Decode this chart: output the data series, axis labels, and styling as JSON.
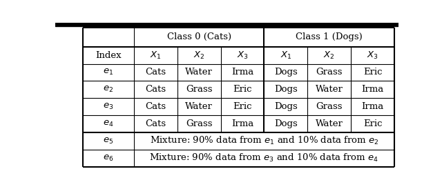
{
  "class0_header": "Class 0 (Cats)",
  "class1_header": "Class 1 (Dogs)",
  "rows": [
    [
      "Cats",
      "Water",
      "Irma",
      "Dogs",
      "Grass",
      "Eric"
    ],
    [
      "Cats",
      "Grass",
      "Eric",
      "Dogs",
      "Water",
      "Irma"
    ],
    [
      "Cats",
      "Water",
      "Eric",
      "Dogs",
      "Grass",
      "Irma"
    ],
    [
      "Cats",
      "Grass",
      "Irma",
      "Dogs",
      "Water",
      "Eric"
    ]
  ],
  "row_indices": [
    "$e_1$",
    "$e_2$",
    "$e_3$",
    "$e_4$",
    "$e_5$",
    "$e_6$"
  ],
  "mixture_texts": [
    "Mixture: 90% data from $e_1$ and 10% data from $e_2$",
    "Mixture: 90% data from $e_3$ and 10% data from $e_4$"
  ],
  "bg_color": "#ffffff",
  "line_color": "#000000",
  "thick_lw": 1.5,
  "thin_lw": 0.8,
  "font_size": 9.5,
  "top_bar_color": "#000000",
  "top_bar_height": 0.025
}
